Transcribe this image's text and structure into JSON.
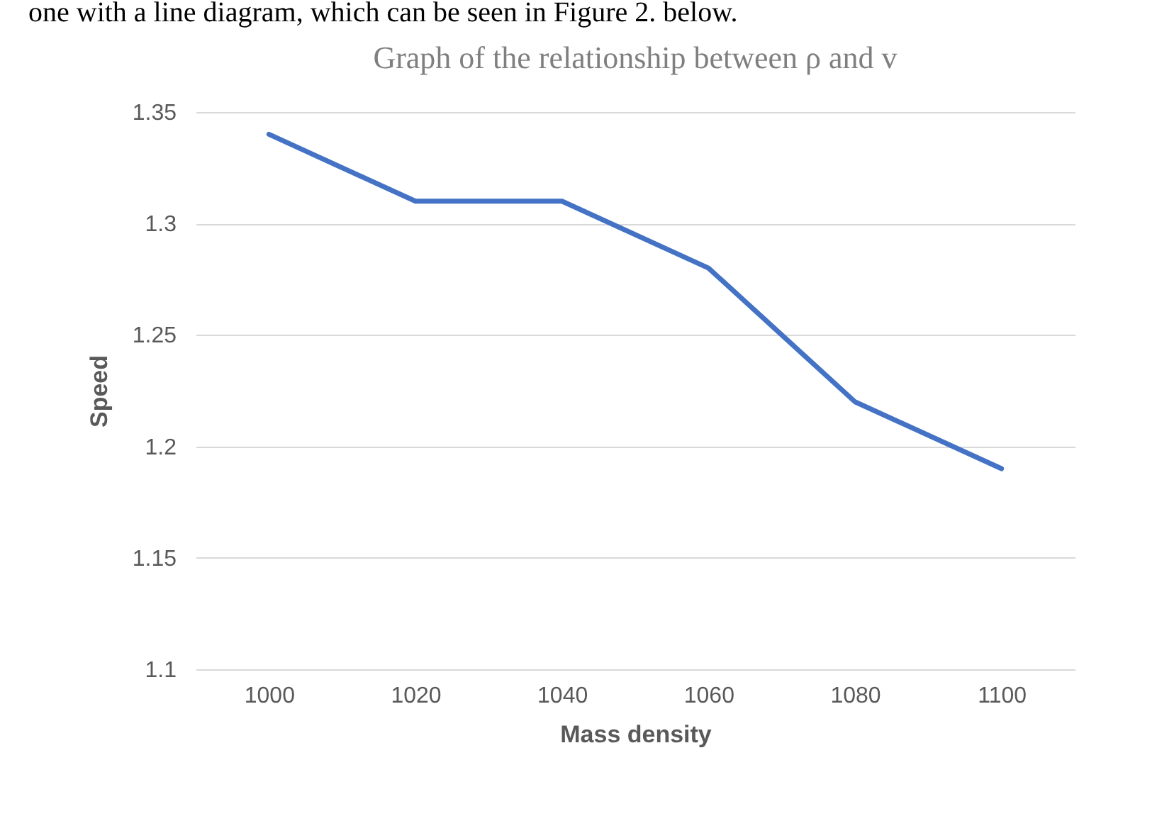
{
  "chart_data": {
    "type": "line",
    "title": "Graph of the relationship between ρ and v",
    "xlabel": "Mass density",
    "ylabel": "Speed",
    "annotations": [
      "one with a line diagram, which can be seen in Figure 2. below."
    ],
    "categories": [
      "1000",
      "1020",
      "1040",
      "1060",
      "1080",
      "1100"
    ],
    "series": [
      {
        "color": "#4472c4",
        "values": [
          1.34,
          1.31,
          1.31,
          1.28,
          1.22,
          1.19
        ]
      }
    ],
    "ylim": [
      1.1,
      1.35
    ],
    "yticks": [
      1.1,
      1.15,
      1.2,
      1.25,
      1.3,
      1.35
    ],
    "grid": "y",
    "marker": "none",
    "line_style": "solid"
  }
}
